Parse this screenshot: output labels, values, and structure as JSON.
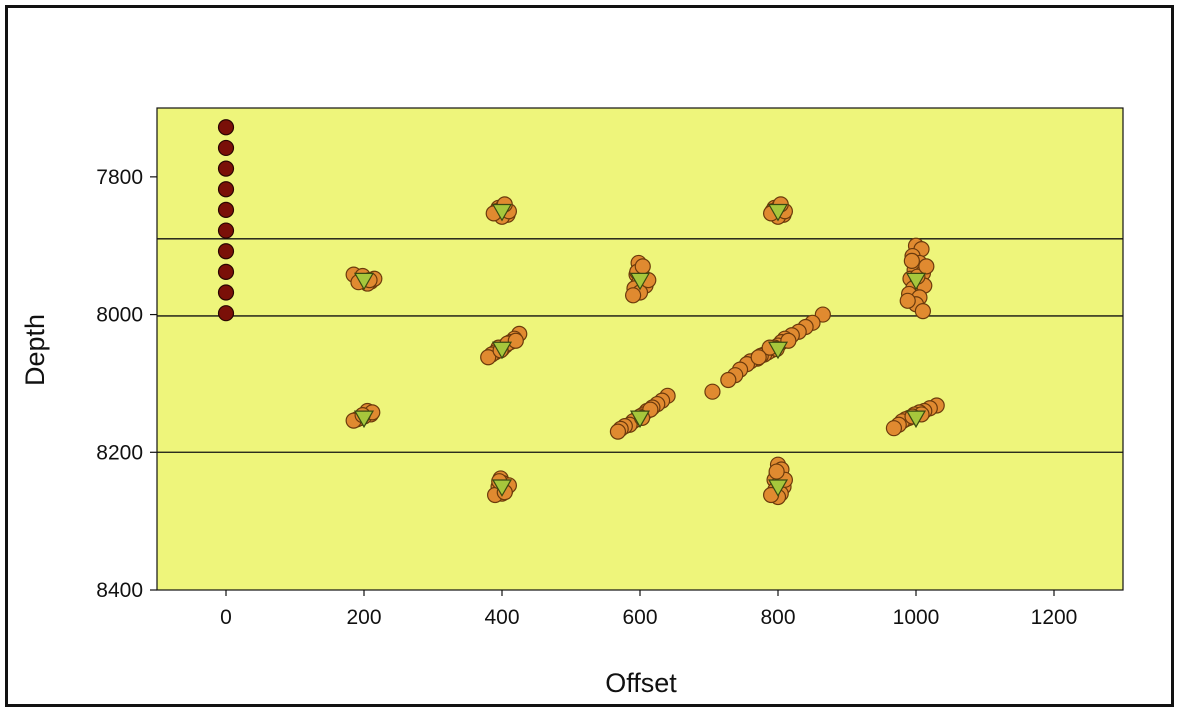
{
  "chart_data": {
    "type": "scatter",
    "title": "",
    "xlabel": "Offset",
    "ylabel": "Depth",
    "xlim": [
      -100,
      1300
    ],
    "ylim": [
      7700,
      8400
    ],
    "y_inverted": true,
    "x_ticks": [
      0,
      200,
      400,
      600,
      800,
      1000,
      1200
    ],
    "y_ticks": [
      7800,
      8000,
      8200,
      8400
    ],
    "grid": false,
    "horizontal_lines": [
      7890,
      8002,
      8200
    ],
    "plot_background": "#eef57b",
    "colors": {
      "receivers": "#7a1008",
      "events": "#e08a30",
      "event_edge": "#6b3a0c",
      "perforations": "#a6c73c",
      "perforation_edge": "#3a4a10",
      "lines": "#111111"
    },
    "series": [
      {
        "name": "",
        "marker": "circle",
        "color": "#7a1008",
        "points": [
          [
            0,
            7728
          ],
          [
            0,
            7758
          ],
          [
            0,
            7788
          ],
          [
            0,
            7818
          ],
          [
            0,
            7848
          ],
          [
            0,
            7878
          ],
          [
            0,
            7908
          ],
          [
            0,
            7938
          ],
          [
            0,
            7968
          ],
          [
            0,
            7998
          ]
        ]
      },
      {
        "name": "",
        "marker": "circle",
        "color": "#e08a30",
        "points": [
          [
            395,
            7845
          ],
          [
            405,
            7848
          ],
          [
            398,
            7852
          ],
          [
            408,
            7855
          ],
          [
            392,
            7850
          ],
          [
            402,
            7843
          ],
          [
            400,
            7858
          ],
          [
            410,
            7850
          ],
          [
            388,
            7853
          ],
          [
            404,
            7840
          ],
          [
            795,
            7845
          ],
          [
            805,
            7848
          ],
          [
            798,
            7852
          ],
          [
            808,
            7855
          ],
          [
            792,
            7850
          ],
          [
            802,
            7843
          ],
          [
            800,
            7858
          ],
          [
            810,
            7850
          ],
          [
            790,
            7853
          ],
          [
            804,
            7840
          ],
          [
            190,
            7945
          ],
          [
            200,
            7948
          ],
          [
            210,
            7952
          ],
          [
            195,
            7950
          ],
          [
            205,
            7955
          ],
          [
            185,
            7942
          ],
          [
            215,
            7948
          ],
          [
            198,
            7944
          ],
          [
            208,
            7950
          ],
          [
            192,
            7953
          ],
          [
            598,
            7925
          ],
          [
            602,
            7935
          ],
          [
            595,
            7942
          ],
          [
            605,
            7948
          ],
          [
            598,
            7955
          ],
          [
            592,
            7962
          ],
          [
            608,
            7958
          ],
          [
            600,
            7968
          ],
          [
            590,
            7972
          ],
          [
            612,
            7950
          ],
          [
            596,
            7938
          ],
          [
            604,
            7930
          ],
          [
            1000,
            7900
          ],
          [
            1008,
            7905
          ],
          [
            995,
            7915
          ],
          [
            1005,
            7925
          ],
          [
            998,
            7935
          ],
          [
            1010,
            7940
          ],
          [
            992,
            7948
          ],
          [
            1002,
            7955
          ],
          [
            996,
            7962
          ],
          [
            1012,
            7958
          ],
          [
            990,
            7970
          ],
          [
            1005,
            7975
          ],
          [
            1000,
            7985
          ],
          [
            988,
            7980
          ],
          [
            1010,
            7995
          ],
          [
            1002,
            7945
          ],
          [
            1015,
            7930
          ],
          [
            994,
            7922
          ],
          [
            425,
            8028
          ],
          [
            418,
            8035
          ],
          [
            412,
            8040
          ],
          [
            405,
            8045
          ],
          [
            400,
            8050
          ],
          [
            395,
            8048
          ],
          [
            390,
            8055
          ],
          [
            385,
            8058
          ],
          [
            380,
            8062
          ],
          [
            408,
            8042
          ],
          [
            420,
            8038
          ],
          [
            398,
            8052
          ],
          [
            865,
            8000
          ],
          [
            850,
            8012
          ],
          [
            840,
            8018
          ],
          [
            830,
            8025
          ],
          [
            820,
            8030
          ],
          [
            810,
            8035
          ],
          [
            805,
            8040
          ],
          [
            800,
            8045
          ],
          [
            795,
            8048
          ],
          [
            790,
            8052
          ],
          [
            785,
            8055
          ],
          [
            780,
            8058
          ],
          [
            775,
            8060
          ],
          [
            770,
            8064
          ],
          [
            760,
            8068
          ],
          [
            755,
            8072
          ],
          [
            745,
            8080
          ],
          [
            738,
            8088
          ],
          [
            728,
            8095
          ],
          [
            705,
            8112
          ],
          [
            815,
            8038
          ],
          [
            798,
            8050
          ],
          [
            788,
            8048
          ],
          [
            772,
            8062
          ],
          [
            205,
            8140
          ],
          [
            210,
            8145
          ],
          [
            200,
            8148
          ],
          [
            195,
            8150
          ],
          [
            190,
            8152
          ],
          [
            185,
            8154
          ],
          [
            212,
            8142
          ],
          [
            198,
            8146
          ],
          [
            640,
            8118
          ],
          [
            632,
            8125
          ],
          [
            625,
            8130
          ],
          [
            618,
            8135
          ],
          [
            610,
            8140
          ],
          [
            605,
            8145
          ],
          [
            600,
            8148
          ],
          [
            595,
            8152
          ],
          [
            590,
            8155
          ],
          [
            585,
            8160
          ],
          [
            578,
            8162
          ],
          [
            572,
            8166
          ],
          [
            568,
            8170
          ],
          [
            615,
            8138
          ],
          [
            603,
            8150
          ],
          [
            1030,
            8132
          ],
          [
            1020,
            8136
          ],
          [
            1012,
            8140
          ],
          [
            1005,
            8142
          ],
          [
            998,
            8145
          ],
          [
            990,
            8150
          ],
          [
            985,
            8152
          ],
          [
            980,
            8155
          ],
          [
            975,
            8160
          ],
          [
            968,
            8165
          ],
          [
            1008,
            8145
          ],
          [
            995,
            8148
          ],
          [
            398,
            8238
          ],
          [
            402,
            8245
          ],
          [
            395,
            8250
          ],
          [
            405,
            8255
          ],
          [
            400,
            8260
          ],
          [
            390,
            8262
          ],
          [
            410,
            8248
          ],
          [
            396,
            8242
          ],
          [
            404,
            8258
          ],
          [
            800,
            8218
          ],
          [
            805,
            8225
          ],
          [
            798,
            8232
          ],
          [
            795,
            8240
          ],
          [
            802,
            8245
          ],
          [
            808,
            8250
          ],
          [
            796,
            8255
          ],
          [
            804,
            8260
          ],
          [
            800,
            8265
          ],
          [
            790,
            8262
          ],
          [
            810,
            8240
          ],
          [
            798,
            8228
          ]
        ]
      },
      {
        "name": "",
        "marker": "triangle-down",
        "color": "#a6c73c",
        "points": [
          [
            400,
            7850
          ],
          [
            800,
            7850
          ],
          [
            200,
            7950
          ],
          [
            600,
            7950
          ],
          [
            1000,
            7950
          ],
          [
            400,
            8050
          ],
          [
            800,
            8050
          ],
          [
            200,
            8150
          ],
          [
            600,
            8150
          ],
          [
            1000,
            8150
          ],
          [
            400,
            8250
          ],
          [
            800,
            8250
          ]
        ]
      }
    ]
  }
}
